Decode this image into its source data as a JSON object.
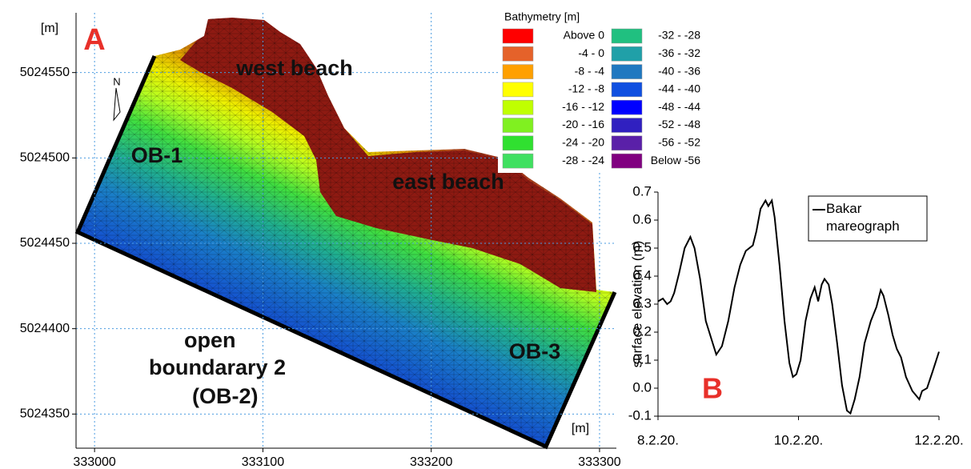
{
  "chart_data": [
    {
      "type": "map",
      "panel_label": "A",
      "x_unit": "[m]",
      "y_unit": "[m]",
      "xlim": [
        332989,
        333310
      ],
      "ylim": [
        5024330,
        5024585
      ],
      "xticks": [
        333000,
        333100,
        333200,
        333300
      ],
      "yticks": [
        5024350,
        5024400,
        5024450,
        5024500,
        5024550
      ],
      "grid": true,
      "north": "N",
      "annotations": [
        "west beach",
        "east beach",
        "OB-1",
        "OB-3",
        "open",
        "boundarary 2",
        "(OB-2)"
      ],
      "legend": {
        "title": "Bathymetry [m]",
        "items": [
          {
            "label": "Above 0",
            "color": "#ff0000"
          },
          {
            "label": "-4 - 0",
            "color": "#e5622a"
          },
          {
            "label": "-8 - -4",
            "color": "#ffa000"
          },
          {
            "label": "-12 - -8",
            "color": "#ffff00"
          },
          {
            "label": "-16 - -12",
            "color": "#c0ff00"
          },
          {
            "label": "-20 - -16",
            "color": "#80f020"
          },
          {
            "label": "-24 - -20",
            "color": "#30e030"
          },
          {
            "label": "-28 - -24",
            "color": "#40e060"
          },
          {
            "label": "-32 - -28",
            "color": "#20c080"
          },
          {
            "label": "-36 - -32",
            "color": "#20a0a8"
          },
          {
            "label": "-40 - -36",
            "color": "#2078c0"
          },
          {
            "label": "-44 - -40",
            "color": "#1050e0"
          },
          {
            "label": "-48 - -44",
            "color": "#0000ff"
          },
          {
            "label": "-52 - -48",
            "color": "#3020c0"
          },
          {
            "label": "-56 - -52",
            "color": "#5a20a8"
          },
          {
            "label": "Below -56",
            "color": "#800080"
          }
        ]
      }
    },
    {
      "type": "line",
      "panel_label": "B",
      "y_label": "surface elevation (m)",
      "xlim": [
        0,
        4
      ],
      "ylim": [
        -0.1,
        0.7
      ],
      "xticks": [
        {
          "value": 0,
          "label": "8.2.20."
        },
        {
          "value": 2,
          "label": "10.2.20."
        },
        {
          "value": 4,
          "label": "12.2.20."
        }
      ],
      "yticks": [
        -0.1,
        {
          "value": 0,
          "label": "0.0"
        },
        0.1,
        0.2,
        0.3,
        0.4,
        0.5,
        0.6,
        0.7
      ],
      "x": [
        0,
        0.07,
        0.13,
        0.18,
        0.23,
        0.3,
        0.38,
        0.46,
        0.52,
        0.6,
        0.68,
        0.78,
        0.83,
        0.91,
        1.0,
        1.09,
        1.17,
        1.25,
        1.35,
        1.4,
        1.46,
        1.53,
        1.57,
        1.62,
        1.66,
        1.73,
        1.8,
        1.87,
        1.92,
        1.97,
        2.03,
        2.1,
        2.17,
        2.23,
        2.28,
        2.33,
        2.37,
        2.43,
        2.48,
        2.55,
        2.62,
        2.69,
        2.74,
        2.8,
        2.87,
        2.94,
        3.03,
        3.11,
        3.17,
        3.21,
        3.28,
        3.34,
        3.4,
        3.46,
        3.53,
        3.62,
        3.72,
        3.76,
        3.83,
        3.91,
        4.0
      ],
      "series": [
        {
          "name": "Bakar mareograph",
          "color": "#000000",
          "values": [
            0.31,
            0.32,
            0.3,
            0.31,
            0.34,
            0.41,
            0.5,
            0.54,
            0.5,
            0.39,
            0.24,
            0.16,
            0.12,
            0.15,
            0.24,
            0.36,
            0.44,
            0.49,
            0.51,
            0.56,
            0.64,
            0.67,
            0.65,
            0.67,
            0.61,
            0.44,
            0.24,
            0.09,
            0.04,
            0.05,
            0.1,
            0.24,
            0.32,
            0.36,
            0.31,
            0.37,
            0.39,
            0.37,
            0.3,
            0.16,
            0.01,
            -0.08,
            -0.09,
            -0.04,
            0.04,
            0.16,
            0.24,
            0.29,
            0.35,
            0.33,
            0.26,
            0.19,
            0.14,
            0.11,
            0.04,
            -0.01,
            -0.04,
            -0.01,
            0.0,
            0.06,
            0.13
          ]
        }
      ]
    }
  ]
}
